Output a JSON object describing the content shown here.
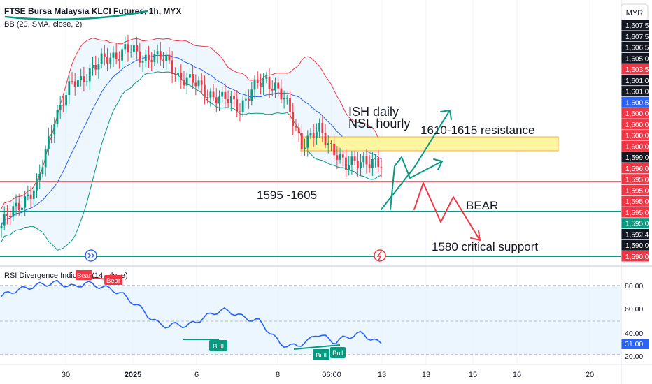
{
  "header": {
    "title": "FTSE Bursa Malaysia KLCI Futures, 1h, MYX",
    "indicator": "BB (20, SMA, close, 2)",
    "currency": "MYR"
  },
  "annotations": {
    "ish": "ISH daily",
    "nsl": "NSL hourly",
    "resistance": "1610-1615 resistance",
    "range": "1595 -1605",
    "bear": "BEAR",
    "support": "1580 critical support"
  },
  "price_axis": {
    "labels": [
      "1,607.5",
      "1,607.5",
      "1,606.5",
      "1,605.0",
      "1,603.5",
      "1,601.0",
      "1,601.0",
      "1,600.5",
      "1,600.0",
      "1,600.0",
      "1,600.0",
      "1,600.0",
      "1,599.0",
      "1,596.0",
      "1,595.0",
      "1,595.0",
      "1,595.0",
      "1,595.0",
      "1,595.0",
      "1,592.4",
      "1,590.0",
      "1,590.0"
    ],
    "colors": [
      "#131722",
      "#131722",
      "#131722",
      "#131722",
      "#f23645",
      "#131722",
      "#131722",
      "#2962ff",
      "#f23645",
      "#f23645",
      "#f23645",
      "#f23645",
      "#131722",
      "#f23645",
      "#f23645",
      "#f23645",
      "#f23645",
      "#f23645",
      "#089981",
      "#131722",
      "#131722",
      "#f23645"
    ]
  },
  "rsi": {
    "label": "RSI Divergence Indicator (14, close)",
    "axis_labels": [
      "80.00",
      "60.00",
      "40.00",
      "20.00"
    ],
    "current": "31.00",
    "signals": {
      "bear1": "Bear",
      "bear2": "Bear",
      "bull1": "Bull",
      "bull2": "Bull",
      "bull3": "Bull"
    }
  },
  "time_axis": [
    "30",
    "2025",
    "6",
    "8",
    "06:00",
    "13",
    "13",
    "15",
    "16",
    "20"
  ],
  "colors": {
    "up": "#089981",
    "down": "#f23645",
    "accent": "#2962ff",
    "support": "#089981",
    "resistance": "#f23645",
    "zone": "#fff59d"
  },
  "chart_data": {
    "type": "candlestick",
    "title": "FTSE Bursa Malaysia KLCI Futures, 1h, MYX",
    "indicator": "BB (20, SMA, close, 2)",
    "last_price": 1595.0,
    "levels": {
      "resistance_line": 1596.0,
      "support_line": 1595.0,
      "critical_support_line": 1590.0
    },
    "resistance_zone": [
      1600.0,
      1601.0
    ],
    "close_path": [
      1589.5,
      1590.5,
      1591.5,
      1592.5,
      1593.0,
      1596.5,
      1600.0,
      1601.5,
      1603.0,
      1603.5,
      1604.5,
      1605.0,
      1605.5,
      1606.0,
      1606.5,
      1606.0,
      1605.5,
      1606.0,
      1605.5,
      1605.0,
      1604.0,
      1603.5,
      1603.0,
      1602.5,
      1602.0,
      1601.5,
      1601.5,
      1601.0,
      1602.0,
      1603.0,
      1603.5,
      1603.0,
      1601.5,
      1599.5,
      1597.5,
      1598.0,
      1598.5,
      1597.5,
      1596.5,
      1595.0,
      1595.5,
      1596.0,
      1595.5,
      1595.0
    ],
    "rsi_path": [
      72,
      76,
      78,
      80,
      82,
      83,
      84,
      82,
      80,
      84,
      82,
      80,
      78,
      74,
      68,
      62,
      54,
      48,
      46,
      48,
      46,
      50,
      54,
      58,
      60,
      58,
      54,
      52,
      50,
      40,
      32,
      28,
      30,
      32,
      40,
      36,
      32,
      36,
      38,
      40,
      34,
      31
    ],
    "rsi_range": [
      20,
      90
    ]
  }
}
